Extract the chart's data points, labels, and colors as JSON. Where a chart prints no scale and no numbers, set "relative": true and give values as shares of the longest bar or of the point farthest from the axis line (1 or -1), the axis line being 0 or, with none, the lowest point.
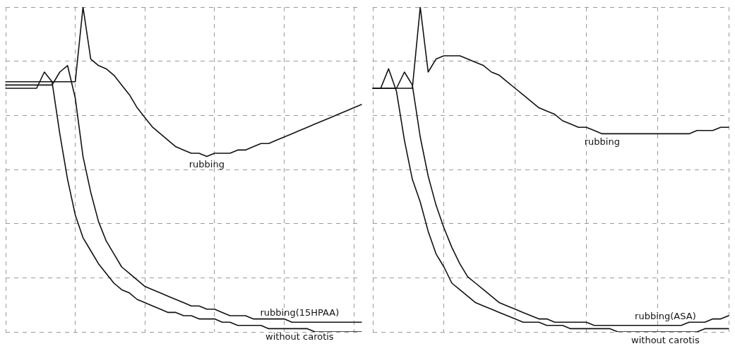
{
  "chart_data": [
    {
      "type": "line",
      "relative": true,
      "grid": true,
      "legend": false,
      "marker": "none",
      "categories": [
        null,
        null,
        null,
        null,
        null,
        null,
        null,
        null,
        null,
        null,
        null,
        null,
        null,
        null,
        null,
        null,
        null,
        null,
        null,
        null,
        null,
        null,
        null,
        null,
        null,
        null,
        null,
        null,
        null,
        null,
        null,
        null,
        null,
        null,
        null,
        null,
        null,
        null,
        null,
        null,
        null,
        null,
        null,
        null,
        null,
        null,
        null
      ],
      "series": [
        {
          "name": "rubbing",
          "color": "#111111",
          "values": [
            0.77,
            0.77,
            0.77,
            0.77,
            0.77,
            0.77,
            0.77,
            0.77,
            0.77,
            0.77,
            1,
            0.84,
            0.82,
            0.81,
            0.79,
            0.76,
            0.73,
            0.69,
            0.66,
            0.63,
            0.61,
            0.59,
            0.57,
            0.56,
            0.55,
            0.55,
            0.54,
            0.55,
            0.55,
            0.55,
            0.56,
            0.56,
            0.57,
            0.58,
            0.58,
            0.59,
            0.6,
            0.61,
            0.62,
            0.63,
            0.64,
            0.65,
            0.66,
            0.67,
            0.68,
            0.69,
            0.7
          ]
        },
        {
          "name": "rubbing(15HPAA)",
          "color": "#111111",
          "values": [
            0.76,
            0.76,
            0.76,
            0.76,
            0.76,
            0.76,
            0.76,
            0.8,
            0.82,
            0.72,
            0.54,
            0.43,
            0.34,
            0.28,
            0.24,
            0.2,
            0.18,
            0.16,
            0.14,
            0.13,
            0.12,
            0.11,
            0.1,
            0.09,
            0.08,
            0.08,
            0.07,
            0.07,
            0.06,
            0.05,
            0.05,
            0.05,
            0.04,
            0.04,
            0.04,
            0.04,
            0.04,
            0.03,
            0.03,
            0.03,
            0.03,
            0.03,
            0.03,
            0.03,
            0.03,
            0.03,
            0.03
          ]
        },
        {
          "name": "without carotis",
          "color": "#111111",
          "values": [
            0.75,
            0.75,
            0.75,
            0.75,
            0.75,
            0.8,
            0.77,
            0.61,
            0.47,
            0.36,
            0.29,
            0.25,
            0.21,
            0.18,
            0.15,
            0.13,
            0.12,
            0.1,
            0.09,
            0.08,
            0.07,
            0.06,
            0.06,
            0.05,
            0.05,
            0.04,
            0.04,
            0.04,
            0.03,
            0.03,
            0.02,
            0.02,
            0.02,
            0.02,
            0.01,
            0.01,
            0.01,
            0.01,
            0.01,
            0.01,
            0,
            0,
            0,
            0,
            0,
            0,
            0
          ]
        }
      ]
    },
    {
      "type": "line",
      "relative": true,
      "grid": true,
      "legend": false,
      "marker": "none",
      "categories": [
        null,
        null,
        null,
        null,
        null,
        null,
        null,
        null,
        null,
        null,
        null,
        null,
        null,
        null,
        null,
        null,
        null,
        null,
        null,
        null,
        null,
        null,
        null,
        null,
        null,
        null,
        null,
        null,
        null,
        null,
        null,
        null,
        null,
        null,
        null,
        null,
        null,
        null,
        null,
        null,
        null,
        null,
        null,
        null,
        null,
        null
      ],
      "series": [
        {
          "name": "rubbing",
          "color": "#111111",
          "values": [
            0.75,
            0.75,
            0.75,
            0.75,
            0.75,
            0.75,
            1,
            0.8,
            0.84,
            0.85,
            0.85,
            0.85,
            0.84,
            0.83,
            0.82,
            0.8,
            0.79,
            0.77,
            0.75,
            0.73,
            0.71,
            0.69,
            0.68,
            0.67,
            0.65,
            0.64,
            0.63,
            0.63,
            0.62,
            0.61,
            0.61,
            0.61,
            0.61,
            0.61,
            0.61,
            0.61,
            0.61,
            0.61,
            0.61,
            0.61,
            0.61,
            0.62,
            0.62,
            0.62,
            0.63,
            0.63
          ]
        },
        {
          "name": "rubbing(ASA)",
          "color": "#111111",
          "values": [
            0.75,
            0.75,
            0.75,
            0.75,
            0.8,
            0.76,
            0.6,
            0.48,
            0.39,
            0.32,
            0.26,
            0.21,
            0.17,
            0.15,
            0.13,
            0.11,
            0.09,
            0.08,
            0.07,
            0.06,
            0.05,
            0.04,
            0.04,
            0.03,
            0.03,
            0.03,
            0.03,
            0.03,
            0.02,
            0.02,
            0.02,
            0.02,
            0.02,
            0.02,
            0.02,
            0.02,
            0.02,
            0.02,
            0.02,
            0.02,
            0.03,
            0.03,
            0.03,
            0.04,
            0.04,
            0.05
          ]
        },
        {
          "name": "without carotis",
          "color": "#111111",
          "values": [
            0.75,
            0.75,
            0.81,
            0.74,
            0.59,
            0.47,
            0.4,
            0.31,
            0.24,
            0.2,
            0.15,
            0.13,
            0.11,
            0.09,
            0.08,
            0.07,
            0.06,
            0.05,
            0.04,
            0.03,
            0.03,
            0.03,
            0.02,
            0.02,
            0.02,
            0.01,
            0.01,
            0.01,
            0.01,
            0.01,
            0.01,
            0,
            0,
            0,
            0,
            0,
            0,
            0,
            0,
            0,
            0,
            0,
            0.01,
            0.01,
            0.01,
            0.01
          ]
        }
      ]
    }
  ]
}
